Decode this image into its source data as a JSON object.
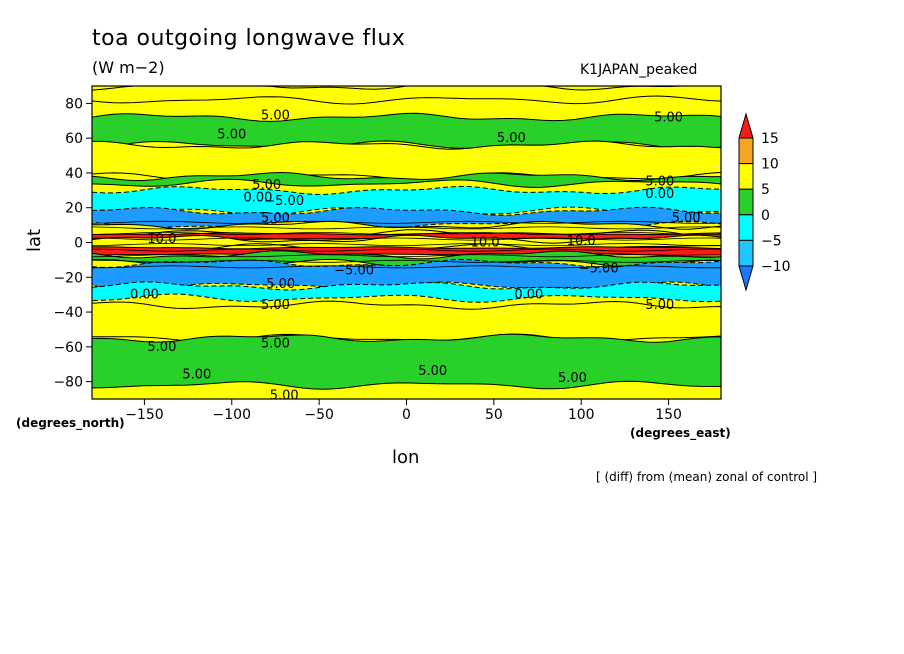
{
  "title": "toa outgoing longwave flux",
  "units": "(W m−2)",
  "run_label": "K1JAPAN_peaked",
  "note": "[ (diff) from (mean) zonal of control ]",
  "colors": {
    "lt_minus10": "#1e78ff",
    "minus10_minus5": "#1ec8ff",
    "minus5_0": "#00e6ff",
    "zero_5": "#2ad02a",
    "five_10": "#ffff00",
    "ten_15": "#f5a623",
    "gt_15": "#ff1a1a",
    "sea_cyan": "#00ffff",
    "deep_blue": "#1e9bff"
  },
  "chart_data": {
    "type": "heatmap",
    "title": "toa outgoing longwave flux",
    "subtitle": "(W m−2)",
    "xlabel": "lon",
    "ylabel": "lat",
    "x_units": "(degrees_east)",
    "y_units": "(degrees_north)",
    "xlim": [
      -180,
      180
    ],
    "ylim": [
      -90,
      90
    ],
    "x_ticks": [
      -150,
      -100,
      -50,
      0,
      50,
      100,
      150
    ],
    "y_ticks": [
      80,
      60,
      40,
      20,
      0,
      -20,
      -40,
      -60,
      -80
    ],
    "colorbar": {
      "levels": [
        -10,
        -5,
        0,
        5,
        10,
        15
      ],
      "tick_labels": [
        "15",
        "10",
        "5",
        "0",
        "−5",
        "−10"
      ],
      "colors": [
        "#1e78ff",
        "#00ffff",
        "#2ad02a",
        "#ffff00",
        "#f5a623",
        "#ff1a1a"
      ],
      "extend": "both"
    },
    "bands": [
      {
        "lat_min": 82,
        "lat_max": 90,
        "value": 7
      },
      {
        "lat_min": 56,
        "lat_max": 72,
        "value": 2
      },
      {
        "lat_min": 38,
        "lat_max": 56,
        "value": 7
      },
      {
        "lat_min": 34,
        "lat_max": 38,
        "value": 2
      },
      {
        "lat_min": 18,
        "lat_max": 30,
        "value": -3
      },
      {
        "lat_min": 10,
        "lat_max": 18,
        "value": -8
      },
      {
        "lat_min": 5,
        "lat_max": 10,
        "value": 8
      },
      {
        "lat_min": 2,
        "lat_max": 5,
        "value": 17
      },
      {
        "lat_min": -3,
        "lat_max": 2,
        "value": 7
      },
      {
        "lat_min": -7,
        "lat_max": -3,
        "value": 17
      },
      {
        "lat_min": -12,
        "lat_max": -7,
        "value": 2
      },
      {
        "lat_min": -25,
        "lat_max": -12,
        "value": -6
      },
      {
        "lat_min": -32,
        "lat_max": -25,
        "value": -3
      },
      {
        "lat_min": -55,
        "lat_max": -36,
        "value": 7
      },
      {
        "lat_min": -82,
        "lat_max": -55,
        "value": 2
      }
    ],
    "contour_labels": [
      {
        "text": "5.00",
        "lon": -75,
        "lat": 73
      },
      {
        "text": "5.00",
        "lon": -100,
        "lat": 62
      },
      {
        "text": "5.00",
        "lon": 60,
        "lat": 60
      },
      {
        "text": "5.00",
        "lon": 150,
        "lat": 72
      },
      {
        "text": "5.00",
        "lon": -80,
        "lat": 33
      },
      {
        "text": "0.00",
        "lon": -85,
        "lat": 26
      },
      {
        "text": "−5.00",
        "lon": -70,
        "lat": 24
      },
      {
        "text": "5.00",
        "lon": 145,
        "lat": 35
      },
      {
        "text": "0.00",
        "lon": 145,
        "lat": 28
      },
      {
        "text": "5.00",
        "lon": -75,
        "lat": 14
      },
      {
        "text": "5.00",
        "lon": 160,
        "lat": 14
      },
      {
        "text": "10.0",
        "lon": -140,
        "lat": 2
      },
      {
        "text": "10.0",
        "lon": 45,
        "lat": 0
      },
      {
        "text": "10.0",
        "lon": 100,
        "lat": 1
      },
      {
        "text": "−5.00",
        "lon": -30,
        "lat": -16
      },
      {
        "text": "−5.00",
        "lon": 110,
        "lat": -15
      },
      {
        "text": "5.00",
        "lon": -72,
        "lat": -24
      },
      {
        "text": "0.00",
        "lon": -150,
        "lat": -30
      },
      {
        "text": "0.00",
        "lon": 70,
        "lat": -30
      },
      {
        "text": "5.00",
        "lon": -75,
        "lat": -36
      },
      {
        "text": "5.00",
        "lon": 145,
        "lat": -36
      },
      {
        "text": "5.00",
        "lon": -140,
        "lat": -60
      },
      {
        "text": "5.00",
        "lon": -75,
        "lat": -58
      },
      {
        "text": "5.00",
        "lon": -120,
        "lat": -76
      },
      {
        "text": "5.00",
        "lon": 15,
        "lat": -74
      },
      {
        "text": "5.00",
        "lon": 95,
        "lat": -78
      },
      {
        "text": "5.00",
        "lon": -70,
        "lat": -88
      }
    ]
  }
}
